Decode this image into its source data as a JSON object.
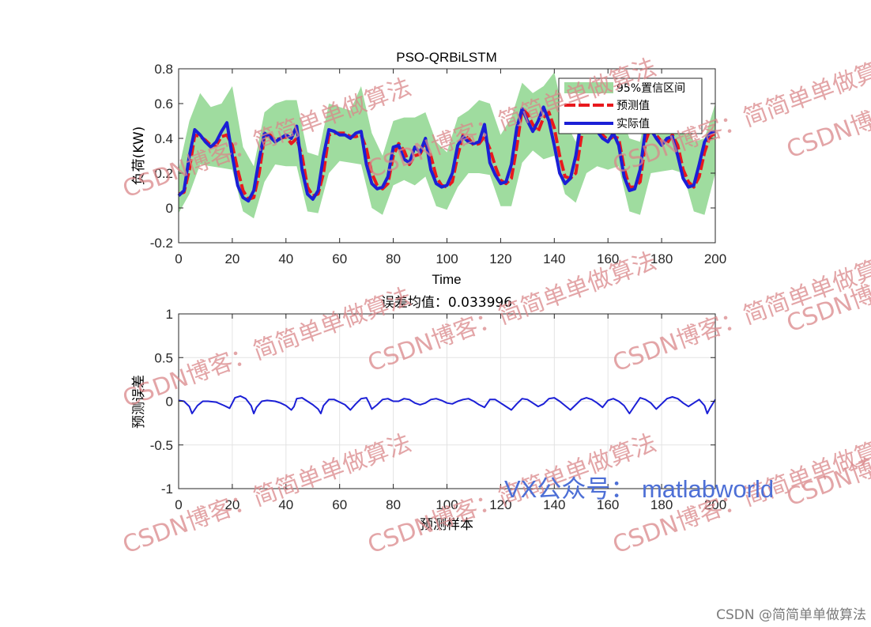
{
  "watermark": {
    "text": "CSDN博客：简简单单做算法",
    "color": "#d9878a"
  },
  "vx_label": "VX公众号： matlabworld",
  "credit": "CSDN @简简单单做算法",
  "chart_data": [
    {
      "type": "line",
      "title": "PSO-QRBiLSTM",
      "xlabel": "Time",
      "ylabel": "负荷(KW)",
      "xlim": [
        0,
        200
      ],
      "ylim": [
        -0.2,
        0.8
      ],
      "xticks": [
        0,
        20,
        40,
        60,
        80,
        100,
        120,
        140,
        160,
        180,
        200
      ],
      "yticks": [
        -0.2,
        0,
        0.2,
        0.4,
        0.6,
        0.8
      ],
      "grid": false,
      "legend_position": "top-right",
      "legend": [
        {
          "label": "95%置信区间",
          "color": "#9fdc9f",
          "kind": "band"
        },
        {
          "label": "预测值",
          "color": "#e8191e",
          "kind": "line"
        },
        {
          "label": "实际值",
          "color": "#1b1fd6",
          "kind": "line"
        }
      ],
      "series": [
        {
          "name": "预测值",
          "color": "#e8191e",
          "x": [
            0,
            2,
            4,
            6,
            8,
            10,
            12,
            14,
            16,
            18,
            20,
            22,
            24,
            26,
            28,
            30,
            32,
            34,
            36,
            38,
            40,
            42,
            44,
            46,
            48,
            50,
            52,
            54,
            56,
            58,
            60,
            62,
            64,
            66,
            68,
            70,
            72,
            74,
            76,
            78,
            80,
            82,
            84,
            86,
            88,
            90,
            92,
            94,
            96,
            98,
            100,
            102,
            104,
            106,
            108,
            110,
            112,
            114,
            116,
            118,
            120,
            122,
            124,
            126,
            128,
            130,
            132,
            134,
            136,
            138,
            140,
            142,
            144,
            146,
            148,
            150,
            152,
            154,
            156,
            158,
            160,
            162,
            164,
            166,
            168,
            170,
            172,
            174,
            176,
            178,
            180,
            182,
            184,
            186,
            188,
            190,
            192,
            194,
            196,
            198,
            200
          ],
          "values": [
            0.08,
            0.09,
            0.22,
            0.42,
            0.41,
            0.39,
            0.36,
            0.36,
            0.41,
            0.42,
            0.36,
            0.22,
            0.1,
            0.05,
            0.06,
            0.2,
            0.41,
            0.42,
            0.39,
            0.4,
            0.41,
            0.37,
            0.4,
            0.3,
            0.12,
            0.07,
            0.08,
            0.2,
            0.42,
            0.43,
            0.43,
            0.43,
            0.41,
            0.41,
            0.42,
            0.34,
            0.2,
            0.13,
            0.11,
            0.14,
            0.3,
            0.37,
            0.33,
            0.25,
            0.3,
            0.31,
            0.37,
            0.3,
            0.18,
            0.13,
            0.12,
            0.15,
            0.3,
            0.42,
            0.4,
            0.36,
            0.37,
            0.41,
            0.34,
            0.24,
            0.16,
            0.14,
            0.17,
            0.35,
            0.57,
            0.54,
            0.48,
            0.44,
            0.52,
            0.55,
            0.46,
            0.3,
            0.18,
            0.17,
            0.2,
            0.4,
            0.55,
            0.5,
            0.46,
            0.42,
            0.39,
            0.41,
            0.4,
            0.23,
            0.12,
            0.12,
            0.15,
            0.38,
            0.47,
            0.42,
            0.38,
            0.37,
            0.42,
            0.36,
            0.22,
            0.15,
            0.12,
            0.18,
            0.32,
            0.41,
            0.43
          ]
        },
        {
          "name": "实际值",
          "color": "#1b1fd6",
          "x": [
            0,
            2,
            4,
            6,
            8,
            10,
            12,
            14,
            16,
            18,
            20,
            22,
            24,
            26,
            28,
            30,
            32,
            34,
            36,
            38,
            40,
            42,
            44,
            46,
            48,
            50,
            52,
            54,
            56,
            58,
            60,
            62,
            64,
            66,
            68,
            70,
            72,
            74,
            76,
            78,
            80,
            82,
            84,
            86,
            88,
            90,
            92,
            94,
            96,
            98,
            100,
            102,
            104,
            106,
            108,
            110,
            112,
            114,
            116,
            118,
            120,
            122,
            124,
            126,
            128,
            130,
            132,
            134,
            136,
            138,
            140,
            142,
            144,
            146,
            148,
            150,
            152,
            154,
            156,
            158,
            160,
            162,
            164,
            166,
            168,
            170,
            172,
            174,
            176,
            178,
            180,
            182,
            184,
            186,
            188,
            190,
            192,
            194,
            196,
            198,
            200
          ],
          "values": [
            0.07,
            0.1,
            0.3,
            0.45,
            0.42,
            0.38,
            0.35,
            0.38,
            0.44,
            0.49,
            0.3,
            0.13,
            0.06,
            0.04,
            0.1,
            0.28,
            0.43,
            0.41,
            0.38,
            0.4,
            0.42,
            0.4,
            0.47,
            0.22,
            0.08,
            0.05,
            0.1,
            0.3,
            0.45,
            0.44,
            0.42,
            0.42,
            0.4,
            0.43,
            0.44,
            0.25,
            0.14,
            0.11,
            0.12,
            0.18,
            0.35,
            0.36,
            0.28,
            0.26,
            0.35,
            0.32,
            0.4,
            0.22,
            0.14,
            0.12,
            0.13,
            0.2,
            0.36,
            0.41,
            0.38,
            0.37,
            0.38,
            0.48,
            0.26,
            0.19,
            0.14,
            0.15,
            0.25,
            0.46,
            0.57,
            0.5,
            0.44,
            0.5,
            0.58,
            0.5,
            0.36,
            0.2,
            0.14,
            0.17,
            0.3,
            0.5,
            0.52,
            0.47,
            0.44,
            0.4,
            0.38,
            0.43,
            0.36,
            0.18,
            0.1,
            0.11,
            0.22,
            0.45,
            0.45,
            0.4,
            0.36,
            0.4,
            0.41,
            0.3,
            0.17,
            0.12,
            0.13,
            0.25,
            0.38,
            0.43,
            0.44
          ]
        }
      ],
      "band": {
        "name": "95%置信区间",
        "color": "#9fdc9f",
        "x": [
          0,
          4,
          8,
          12,
          16,
          20,
          24,
          28,
          32,
          36,
          40,
          44,
          48,
          52,
          56,
          60,
          64,
          68,
          72,
          76,
          80,
          84,
          88,
          92,
          96,
          100,
          104,
          108,
          112,
          116,
          120,
          124,
          128,
          132,
          136,
          140,
          144,
          148,
          152,
          156,
          160,
          164,
          168,
          172,
          176,
          180,
          184,
          188,
          192,
          196,
          200
        ],
        "upper": [
          0.22,
          0.5,
          0.66,
          0.58,
          0.6,
          0.7,
          0.35,
          0.24,
          0.55,
          0.6,
          0.62,
          0.62,
          0.32,
          0.3,
          0.6,
          0.58,
          0.56,
          0.7,
          0.43,
          0.3,
          0.5,
          0.52,
          0.52,
          0.55,
          0.38,
          0.32,
          0.52,
          0.56,
          0.62,
          0.6,
          0.42,
          0.52,
          0.72,
          0.66,
          0.7,
          0.78,
          0.5,
          0.38,
          0.72,
          0.68,
          0.6,
          0.58,
          0.4,
          0.38,
          0.7,
          0.63,
          0.6,
          0.56,
          0.38,
          0.4,
          0.6
        ],
        "lower": [
          -0.03,
          0.08,
          0.25,
          0.24,
          0.23,
          0.22,
          -0.02,
          -0.06,
          0.15,
          0.25,
          0.24,
          0.24,
          -0.02,
          -0.03,
          0.2,
          0.27,
          0.26,
          0.25,
          0.0,
          -0.04,
          0.13,
          0.16,
          0.13,
          0.18,
          0.01,
          -0.01,
          0.12,
          0.2,
          0.2,
          0.19,
          0.01,
          0.01,
          0.26,
          0.33,
          0.28,
          0.3,
          0.08,
          0.03,
          0.2,
          0.24,
          0.22,
          0.24,
          -0.02,
          -0.04,
          0.2,
          0.21,
          0.22,
          0.2,
          -0.02,
          -0.04,
          0.2
        ]
      }
    },
    {
      "type": "line",
      "title": "误差均值：0.033996",
      "xlabel": "预测样本",
      "ylabel": "预测误差",
      "xlim": [
        0,
        200
      ],
      "ylim": [
        -1,
        1
      ],
      "xticks": [
        0,
        20,
        40,
        60,
        80,
        100,
        120,
        140,
        160,
        180,
        200
      ],
      "yticks": [
        -1,
        -0.5,
        0,
        0.5,
        1
      ],
      "grid": true,
      "series": [
        {
          "color": "#1b1fd6",
          "x": [
            0,
            2,
            4,
            5,
            7,
            9,
            11,
            14,
            17,
            19,
            21,
            23,
            25,
            27,
            28,
            29,
            31,
            33,
            36,
            38,
            40,
            42,
            43,
            44,
            46,
            48,
            50,
            52,
            53,
            54,
            56,
            58,
            60,
            62,
            64,
            66,
            68,
            70,
            71,
            72,
            74,
            76,
            78,
            80,
            82,
            84,
            86,
            88,
            90,
            92,
            94,
            96,
            98,
            100,
            102,
            104,
            106,
            108,
            110,
            112,
            114,
            116,
            118,
            120,
            122,
            124,
            126,
            128,
            130,
            132,
            134,
            136,
            138,
            140,
            142,
            144,
            146,
            148,
            150,
            152,
            154,
            156,
            158,
            160,
            162,
            164,
            166,
            168,
            170,
            172,
            174,
            176,
            178,
            180,
            182,
            184,
            186,
            188,
            190,
            192,
            194,
            196,
            197,
            198,
            200
          ],
          "values": [
            0.01,
            0.0,
            -0.06,
            -0.14,
            -0.05,
            0.0,
            0.0,
            -0.01,
            -0.05,
            -0.08,
            0.04,
            0.06,
            0.03,
            -0.05,
            -0.14,
            -0.07,
            0.0,
            0.01,
            0.0,
            -0.02,
            -0.05,
            -0.1,
            -0.06,
            0.03,
            0.04,
            0.0,
            -0.04,
            -0.09,
            -0.14,
            -0.05,
            0.02,
            0.02,
            -0.01,
            -0.04,
            -0.1,
            -0.03,
            0.03,
            0.04,
            -0.02,
            -0.09,
            -0.04,
            0.02,
            0.03,
            0.0,
            0.0,
            0.03,
            0.02,
            -0.02,
            -0.04,
            -0.02,
            0.02,
            0.03,
            0.01,
            -0.02,
            -0.03,
            0.0,
            0.02,
            0.03,
            0.0,
            -0.04,
            -0.07,
            0.02,
            0.02,
            -0.02,
            -0.06,
            -0.1,
            -0.03,
            0.03,
            0.02,
            -0.02,
            -0.06,
            -0.03,
            0.03,
            0.04,
            0.0,
            -0.05,
            -0.1,
            -0.04,
            0.02,
            0.04,
            0.02,
            -0.02,
            -0.07,
            0.01,
            0.03,
            0.0,
            -0.05,
            -0.14,
            -0.05,
            0.04,
            0.02,
            -0.02,
            -0.09,
            -0.03,
            0.03,
            0.05,
            0.03,
            -0.02,
            -0.06,
            -0.02,
            0.02,
            -0.05,
            -0.14,
            -0.08,
            0.02
          ]
        }
      ]
    }
  ]
}
